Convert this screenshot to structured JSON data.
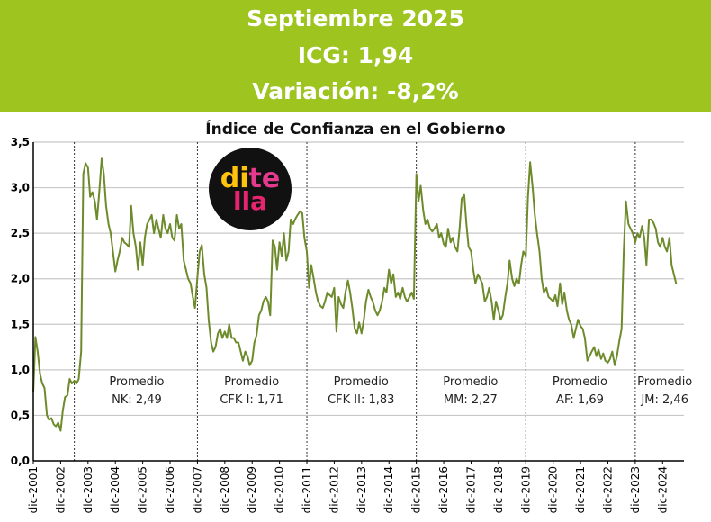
{
  "banner": {
    "line1": "Septiembre 2025",
    "line2": "ICG: 1,94",
    "line3": "Variación: -8,2%",
    "bg_color": "#9DC41F"
  },
  "logo": {
    "line1_a": "di",
    "line1_b": "te",
    "line2": "lla",
    "colors": {
      "di": "#FFC20E",
      "te": "#E43A8E",
      "lla": "#E5266F",
      "disc": "#111111"
    }
  },
  "chart_data": {
    "type": "line",
    "title": "Índice de Confianza en el Gobierno",
    "line_color": "#6E8B2C",
    "ylim": [
      0,
      3.5
    ],
    "ytick_labels": [
      "0,0",
      "0,5",
      "1,0",
      "1,5",
      "2,0",
      "2,5",
      "3,0",
      "3,5"
    ],
    "xlim": [
      2001.92,
      2025.7
    ],
    "xtick_labels": [
      "dic-2001",
      "dic-2002",
      "dic-2003",
      "dic-2004",
      "dic-2005",
      "dic-2006",
      "dic-2007",
      "dic-2008",
      "dic-2009",
      "dic-2010",
      "dic-2011",
      "dic-2012",
      "dic-2013",
      "dic-2014",
      "dic-2015",
      "dic-2016",
      "dic-2017",
      "dic-2018",
      "dic-2019",
      "dic-2020",
      "dic-2021",
      "dic-2022",
      "dic-2023",
      "dic-2024"
    ],
    "grid": true,
    "period_dividers": [
      2003.42,
      2007.92,
      2011.92,
      2015.92,
      2019.92,
      2023.92
    ],
    "annotations": [
      {
        "line1": "Promedio",
        "line2": "NK: 2,49",
        "x": 2005.7
      },
      {
        "line1": "Promedio",
        "line2": "CFK I: 1,71",
        "x": 2009.9
      },
      {
        "line1": "Promedio",
        "line2": "CFK II: 1,83",
        "x": 2013.9
      },
      {
        "line1": "Promedio",
        "line2": "MM: 2,27",
        "x": 2017.9
      },
      {
        "line1": "Promedio",
        "line2": "AF: 1,69",
        "x": 2021.9
      },
      {
        "line1": "Promedio",
        "line2": "JM: 2,46",
        "x": 2025.0
      }
    ],
    "series": [
      {
        "points": [
          [
            2001.92,
            0.75
          ],
          [
            2002.0,
            1.36
          ],
          [
            2002.08,
            1.2
          ],
          [
            2002.17,
            0.95
          ],
          [
            2002.25,
            0.85
          ],
          [
            2002.33,
            0.8
          ],
          [
            2002.42,
            0.5
          ],
          [
            2002.5,
            0.45
          ],
          [
            2002.58,
            0.47
          ],
          [
            2002.67,
            0.4
          ],
          [
            2002.75,
            0.38
          ],
          [
            2002.83,
            0.42
          ],
          [
            2002.92,
            0.33
          ],
          [
            2003.0,
            0.55
          ],
          [
            2003.08,
            0.7
          ],
          [
            2003.17,
            0.72
          ],
          [
            2003.25,
            0.9
          ],
          [
            2003.33,
            0.85
          ],
          [
            2003.42,
            0.88
          ],
          [
            2003.5,
            0.85
          ],
          [
            2003.58,
            0.9
          ],
          [
            2003.67,
            1.2
          ],
          [
            2003.75,
            3.15
          ],
          [
            2003.83,
            3.27
          ],
          [
            2003.92,
            3.22
          ],
          [
            2004.0,
            2.9
          ],
          [
            2004.08,
            2.95
          ],
          [
            2004.17,
            2.85
          ],
          [
            2004.25,
            2.65
          ],
          [
            2004.33,
            2.95
          ],
          [
            2004.42,
            3.32
          ],
          [
            2004.5,
            3.15
          ],
          [
            2004.58,
            2.8
          ],
          [
            2004.67,
            2.6
          ],
          [
            2004.75,
            2.5
          ],
          [
            2004.83,
            2.3
          ],
          [
            2004.92,
            2.08
          ],
          [
            2005.0,
            2.2
          ],
          [
            2005.08,
            2.3
          ],
          [
            2005.17,
            2.45
          ],
          [
            2005.25,
            2.4
          ],
          [
            2005.33,
            2.38
          ],
          [
            2005.42,
            2.35
          ],
          [
            2005.5,
            2.8
          ],
          [
            2005.58,
            2.5
          ],
          [
            2005.67,
            2.35
          ],
          [
            2005.75,
            2.1
          ],
          [
            2005.83,
            2.4
          ],
          [
            2005.92,
            2.15
          ],
          [
            2006.0,
            2.45
          ],
          [
            2006.08,
            2.6
          ],
          [
            2006.17,
            2.65
          ],
          [
            2006.25,
            2.7
          ],
          [
            2006.33,
            2.5
          ],
          [
            2006.42,
            2.65
          ],
          [
            2006.5,
            2.55
          ],
          [
            2006.58,
            2.45
          ],
          [
            2006.67,
            2.7
          ],
          [
            2006.75,
            2.55
          ],
          [
            2006.83,
            2.5
          ],
          [
            2006.92,
            2.6
          ],
          [
            2007.0,
            2.45
          ],
          [
            2007.08,
            2.42
          ],
          [
            2007.17,
            2.7
          ],
          [
            2007.25,
            2.55
          ],
          [
            2007.33,
            2.6
          ],
          [
            2007.42,
            2.2
          ],
          [
            2007.5,
            2.1
          ],
          [
            2007.58,
            2.0
          ],
          [
            2007.67,
            1.95
          ],
          [
            2007.75,
            1.8
          ],
          [
            2007.83,
            1.68
          ],
          [
            2007.92,
            2.02
          ],
          [
            2008.0,
            2.3
          ],
          [
            2008.08,
            2.37
          ],
          [
            2008.17,
            2.05
          ],
          [
            2008.25,
            1.9
          ],
          [
            2008.33,
            1.55
          ],
          [
            2008.42,
            1.3
          ],
          [
            2008.5,
            1.2
          ],
          [
            2008.58,
            1.25
          ],
          [
            2008.67,
            1.4
          ],
          [
            2008.75,
            1.45
          ],
          [
            2008.83,
            1.35
          ],
          [
            2008.92,
            1.42
          ],
          [
            2009.0,
            1.35
          ],
          [
            2009.08,
            1.5
          ],
          [
            2009.17,
            1.35
          ],
          [
            2009.25,
            1.35
          ],
          [
            2009.33,
            1.3
          ],
          [
            2009.42,
            1.3
          ],
          [
            2009.5,
            1.2
          ],
          [
            2009.58,
            1.1
          ],
          [
            2009.67,
            1.2
          ],
          [
            2009.75,
            1.15
          ],
          [
            2009.83,
            1.05
          ],
          [
            2009.92,
            1.1
          ],
          [
            2010.0,
            1.3
          ],
          [
            2010.08,
            1.38
          ],
          [
            2010.17,
            1.6
          ],
          [
            2010.25,
            1.65
          ],
          [
            2010.33,
            1.75
          ],
          [
            2010.42,
            1.8
          ],
          [
            2010.5,
            1.75
          ],
          [
            2010.58,
            1.6
          ],
          [
            2010.67,
            2.42
          ],
          [
            2010.75,
            2.35
          ],
          [
            2010.83,
            2.1
          ],
          [
            2010.92,
            2.4
          ],
          [
            2011.0,
            2.25
          ],
          [
            2011.08,
            2.5
          ],
          [
            2011.17,
            2.2
          ],
          [
            2011.25,
            2.3
          ],
          [
            2011.33,
            2.65
          ],
          [
            2011.42,
            2.6
          ],
          [
            2011.5,
            2.66
          ],
          [
            2011.58,
            2.7
          ],
          [
            2011.67,
            2.74
          ],
          [
            2011.75,
            2.72
          ],
          [
            2011.83,
            2.45
          ],
          [
            2011.92,
            2.3
          ],
          [
            2012.0,
            1.9
          ],
          [
            2012.08,
            2.15
          ],
          [
            2012.17,
            2.0
          ],
          [
            2012.25,
            1.85
          ],
          [
            2012.33,
            1.75
          ],
          [
            2012.42,
            1.7
          ],
          [
            2012.5,
            1.68
          ],
          [
            2012.58,
            1.75
          ],
          [
            2012.67,
            1.85
          ],
          [
            2012.75,
            1.82
          ],
          [
            2012.83,
            1.8
          ],
          [
            2012.92,
            1.9
          ],
          [
            2013.0,
            1.42
          ],
          [
            2013.08,
            1.8
          ],
          [
            2013.17,
            1.72
          ],
          [
            2013.25,
            1.68
          ],
          [
            2013.33,
            1.85
          ],
          [
            2013.42,
            1.98
          ],
          [
            2013.5,
            1.85
          ],
          [
            2013.58,
            1.68
          ],
          [
            2013.67,
            1.45
          ],
          [
            2013.75,
            1.4
          ],
          [
            2013.83,
            1.52
          ],
          [
            2013.92,
            1.4
          ],
          [
            2014.0,
            1.55
          ],
          [
            2014.08,
            1.75
          ],
          [
            2014.17,
            1.88
          ],
          [
            2014.25,
            1.8
          ],
          [
            2014.33,
            1.75
          ],
          [
            2014.42,
            1.65
          ],
          [
            2014.5,
            1.6
          ],
          [
            2014.58,
            1.65
          ],
          [
            2014.67,
            1.75
          ],
          [
            2014.75,
            1.9
          ],
          [
            2014.83,
            1.85
          ],
          [
            2014.92,
            2.1
          ],
          [
            2015.0,
            1.95
          ],
          [
            2015.08,
            2.05
          ],
          [
            2015.17,
            1.8
          ],
          [
            2015.25,
            1.85
          ],
          [
            2015.33,
            1.78
          ],
          [
            2015.42,
            1.9
          ],
          [
            2015.5,
            1.8
          ],
          [
            2015.58,
            1.75
          ],
          [
            2015.67,
            1.8
          ],
          [
            2015.75,
            1.85
          ],
          [
            2015.83,
            1.78
          ],
          [
            2015.92,
            3.15
          ],
          [
            2016.0,
            2.85
          ],
          [
            2016.08,
            3.02
          ],
          [
            2016.17,
            2.75
          ],
          [
            2016.25,
            2.6
          ],
          [
            2016.33,
            2.65
          ],
          [
            2016.42,
            2.55
          ],
          [
            2016.5,
            2.52
          ],
          [
            2016.58,
            2.55
          ],
          [
            2016.67,
            2.6
          ],
          [
            2016.75,
            2.45
          ],
          [
            2016.83,
            2.5
          ],
          [
            2016.92,
            2.38
          ],
          [
            2017.0,
            2.35
          ],
          [
            2017.08,
            2.55
          ],
          [
            2017.17,
            2.4
          ],
          [
            2017.25,
            2.45
          ],
          [
            2017.33,
            2.35
          ],
          [
            2017.42,
            2.3
          ],
          [
            2017.5,
            2.55
          ],
          [
            2017.58,
            2.88
          ],
          [
            2017.67,
            2.92
          ],
          [
            2017.75,
            2.6
          ],
          [
            2017.83,
            2.35
          ],
          [
            2017.92,
            2.3
          ],
          [
            2018.0,
            2.1
          ],
          [
            2018.08,
            1.95
          ],
          [
            2018.17,
            2.05
          ],
          [
            2018.25,
            2.0
          ],
          [
            2018.33,
            1.95
          ],
          [
            2018.42,
            1.75
          ],
          [
            2018.5,
            1.8
          ],
          [
            2018.58,
            1.9
          ],
          [
            2018.67,
            1.75
          ],
          [
            2018.75,
            1.55
          ],
          [
            2018.83,
            1.75
          ],
          [
            2018.92,
            1.65
          ],
          [
            2019.0,
            1.55
          ],
          [
            2019.08,
            1.6
          ],
          [
            2019.17,
            1.8
          ],
          [
            2019.25,
            1.95
          ],
          [
            2019.33,
            2.2
          ],
          [
            2019.42,
            2.0
          ],
          [
            2019.5,
            1.92
          ],
          [
            2019.58,
            2.0
          ],
          [
            2019.67,
            1.95
          ],
          [
            2019.75,
            2.15
          ],
          [
            2019.83,
            2.3
          ],
          [
            2019.92,
            2.25
          ],
          [
            2020.0,
            2.9
          ],
          [
            2020.08,
            3.28
          ],
          [
            2020.17,
            3.0
          ],
          [
            2020.25,
            2.7
          ],
          [
            2020.33,
            2.5
          ],
          [
            2020.42,
            2.3
          ],
          [
            2020.5,
            2.0
          ],
          [
            2020.58,
            1.85
          ],
          [
            2020.67,
            1.9
          ],
          [
            2020.75,
            1.8
          ],
          [
            2020.83,
            1.78
          ],
          [
            2020.92,
            1.75
          ],
          [
            2021.0,
            1.82
          ],
          [
            2021.08,
            1.7
          ],
          [
            2021.17,
            1.95
          ],
          [
            2021.25,
            1.72
          ],
          [
            2021.33,
            1.85
          ],
          [
            2021.42,
            1.65
          ],
          [
            2021.5,
            1.55
          ],
          [
            2021.58,
            1.5
          ],
          [
            2021.67,
            1.35
          ],
          [
            2021.75,
            1.45
          ],
          [
            2021.83,
            1.55
          ],
          [
            2021.92,
            1.48
          ],
          [
            2022.0,
            1.45
          ],
          [
            2022.08,
            1.35
          ],
          [
            2022.17,
            1.1
          ],
          [
            2022.25,
            1.15
          ],
          [
            2022.33,
            1.2
          ],
          [
            2022.42,
            1.25
          ],
          [
            2022.5,
            1.15
          ],
          [
            2022.58,
            1.22
          ],
          [
            2022.67,
            1.12
          ],
          [
            2022.75,
            1.18
          ],
          [
            2022.83,
            1.1
          ],
          [
            2022.92,
            1.08
          ],
          [
            2023.0,
            1.12
          ],
          [
            2023.08,
            1.2
          ],
          [
            2023.17,
            1.05
          ],
          [
            2023.25,
            1.15
          ],
          [
            2023.33,
            1.3
          ],
          [
            2023.42,
            1.45
          ],
          [
            2023.5,
            2.3
          ],
          [
            2023.58,
            2.85
          ],
          [
            2023.67,
            2.6
          ],
          [
            2023.75,
            2.55
          ],
          [
            2023.83,
            2.5
          ],
          [
            2023.92,
            2.4
          ],
          [
            2024.0,
            2.5
          ],
          [
            2024.08,
            2.45
          ],
          [
            2024.17,
            2.58
          ],
          [
            2024.25,
            2.45
          ],
          [
            2024.33,
            2.15
          ],
          [
            2024.42,
            2.65
          ],
          [
            2024.5,
            2.65
          ],
          [
            2024.58,
            2.62
          ],
          [
            2024.67,
            2.55
          ],
          [
            2024.75,
            2.4
          ],
          [
            2024.83,
            2.35
          ],
          [
            2024.92,
            2.45
          ],
          [
            2025.0,
            2.35
          ],
          [
            2025.08,
            2.3
          ],
          [
            2025.17,
            2.45
          ],
          [
            2025.25,
            2.15
          ],
          [
            2025.33,
            2.05
          ],
          [
            2025.42,
            1.94
          ]
        ]
      }
    ]
  }
}
